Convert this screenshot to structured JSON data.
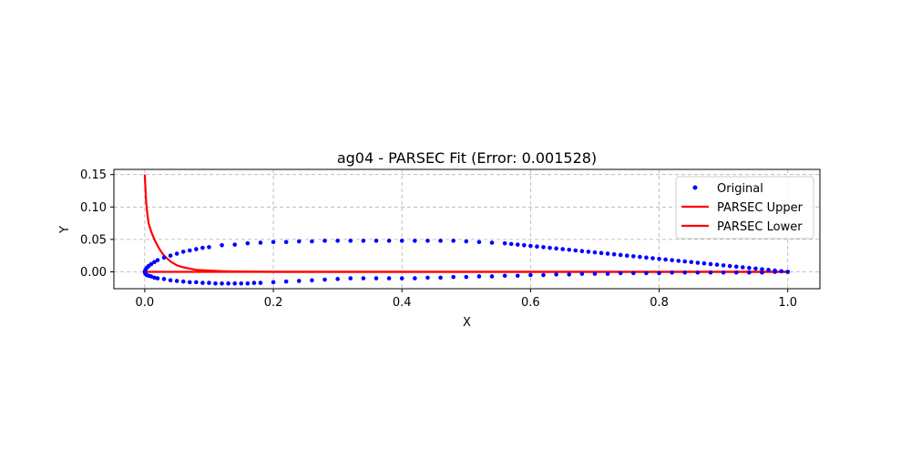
{
  "chart_data": {
    "type": "scatter",
    "title": "ag04 - PARSEC Fit (Error: 0.001528)",
    "xlabel": "X",
    "ylabel": "Y",
    "xlim": [
      -0.048,
      1.05
    ],
    "ylim": [
      -0.026,
      0.158
    ],
    "xticks": [
      0.0,
      0.2,
      0.4,
      0.6,
      0.8,
      1.0
    ],
    "xtick_labels": [
      "0.0",
      "0.2",
      "0.4",
      "0.6",
      "0.8",
      "1.0"
    ],
    "yticks": [
      0.0,
      0.05,
      0.1,
      0.15
    ],
    "ytick_labels": [
      "0.00",
      "0.05",
      "0.10",
      "0.15"
    ],
    "grid": true,
    "legend_position": "top-right",
    "series": [
      {
        "name": "Original",
        "kind": "scatter",
        "color": "#0000ff",
        "points": [
          [
            1.0,
            0.0
          ],
          [
            0.99,
            0.001
          ],
          [
            0.98,
            0.002
          ],
          [
            0.97,
            0.003
          ],
          [
            0.96,
            0.004
          ],
          [
            0.95,
            0.005
          ],
          [
            0.94,
            0.006
          ],
          [
            0.93,
            0.007
          ],
          [
            0.92,
            0.008
          ],
          [
            0.91,
            0.009
          ],
          [
            0.9,
            0.01
          ],
          [
            0.89,
            0.011
          ],
          [
            0.88,
            0.012
          ],
          [
            0.87,
            0.013
          ],
          [
            0.86,
            0.014
          ],
          [
            0.85,
            0.015
          ],
          [
            0.84,
            0.016
          ],
          [
            0.83,
            0.017
          ],
          [
            0.82,
            0.018
          ],
          [
            0.81,
            0.019
          ],
          [
            0.8,
            0.02
          ],
          [
            0.79,
            0.021
          ],
          [
            0.78,
            0.022
          ],
          [
            0.77,
            0.023
          ],
          [
            0.76,
            0.024
          ],
          [
            0.75,
            0.025
          ],
          [
            0.74,
            0.026
          ],
          [
            0.73,
            0.027
          ],
          [
            0.72,
            0.028
          ],
          [
            0.71,
            0.029
          ],
          [
            0.7,
            0.03
          ],
          [
            0.69,
            0.031
          ],
          [
            0.68,
            0.032
          ],
          [
            0.67,
            0.033
          ],
          [
            0.66,
            0.034
          ],
          [
            0.65,
            0.035
          ],
          [
            0.64,
            0.036
          ],
          [
            0.63,
            0.037
          ],
          [
            0.62,
            0.038
          ],
          [
            0.61,
            0.039
          ],
          [
            0.6,
            0.04
          ],
          [
            0.59,
            0.041
          ],
          [
            0.58,
            0.042
          ],
          [
            0.57,
            0.043
          ],
          [
            0.56,
            0.044
          ],
          [
            0.54,
            0.045
          ],
          [
            0.52,
            0.046
          ],
          [
            0.5,
            0.047
          ],
          [
            0.48,
            0.048
          ],
          [
            0.46,
            0.048
          ],
          [
            0.44,
            0.048
          ],
          [
            0.42,
            0.048
          ],
          [
            0.4,
            0.048
          ],
          [
            0.38,
            0.048
          ],
          [
            0.36,
            0.048
          ],
          [
            0.34,
            0.048
          ],
          [
            0.32,
            0.048
          ],
          [
            0.3,
            0.048
          ],
          [
            0.28,
            0.048
          ],
          [
            0.26,
            0.047
          ],
          [
            0.24,
            0.047
          ],
          [
            0.22,
            0.046
          ],
          [
            0.2,
            0.046
          ],
          [
            0.18,
            0.045
          ],
          [
            0.16,
            0.044
          ],
          [
            0.14,
            0.042
          ],
          [
            0.12,
            0.041
          ],
          [
            0.1,
            0.038
          ],
          [
            0.09,
            0.037
          ],
          [
            0.08,
            0.035
          ],
          [
            0.07,
            0.033
          ],
          [
            0.06,
            0.031
          ],
          [
            0.05,
            0.028
          ],
          [
            0.04,
            0.025
          ],
          [
            0.03,
            0.022
          ],
          [
            0.02,
            0.018
          ],
          [
            0.015,
            0.015
          ],
          [
            0.01,
            0.012
          ],
          [
            0.006,
            0.009
          ],
          [
            0.003,
            0.006
          ],
          [
            0.001,
            0.003
          ],
          [
            0.0,
            0.0
          ],
          [
            0.001,
            -0.003
          ],
          [
            0.003,
            -0.005
          ],
          [
            0.006,
            -0.006
          ],
          [
            0.01,
            -0.007
          ],
          [
            0.015,
            -0.009
          ],
          [
            0.02,
            -0.01
          ],
          [
            0.03,
            -0.011
          ],
          [
            0.04,
            -0.013
          ],
          [
            0.05,
            -0.014
          ],
          [
            0.06,
            -0.015
          ],
          [
            0.07,
            -0.016
          ],
          [
            0.08,
            -0.016
          ],
          [
            0.09,
            -0.017
          ],
          [
            0.1,
            -0.017
          ],
          [
            0.11,
            -0.018
          ],
          [
            0.12,
            -0.018
          ],
          [
            0.13,
            -0.018
          ],
          [
            0.14,
            -0.018
          ],
          [
            0.15,
            -0.018
          ],
          [
            0.16,
            -0.018
          ],
          [
            0.17,
            -0.017
          ],
          [
            0.18,
            -0.017
          ],
          [
            0.2,
            -0.016
          ],
          [
            0.22,
            -0.015
          ],
          [
            0.24,
            -0.014
          ],
          [
            0.26,
            -0.013
          ],
          [
            0.28,
            -0.012
          ],
          [
            0.3,
            -0.011
          ],
          [
            0.32,
            -0.01
          ],
          [
            0.34,
            -0.01
          ],
          [
            0.36,
            -0.01
          ],
          [
            0.38,
            -0.01
          ],
          [
            0.4,
            -0.01
          ],
          [
            0.42,
            -0.01
          ],
          [
            0.44,
            -0.009
          ],
          [
            0.46,
            -0.009
          ],
          [
            0.48,
            -0.008
          ],
          [
            0.5,
            -0.008
          ],
          [
            0.52,
            -0.007
          ],
          [
            0.54,
            -0.007
          ],
          [
            0.56,
            -0.006
          ],
          [
            0.58,
            -0.006
          ],
          [
            0.6,
            -0.005
          ],
          [
            0.62,
            -0.005
          ],
          [
            0.64,
            -0.004
          ],
          [
            0.66,
            -0.004
          ],
          [
            0.68,
            -0.003
          ],
          [
            0.7,
            -0.003
          ],
          [
            0.72,
            -0.003
          ],
          [
            0.74,
            -0.002
          ],
          [
            0.76,
            -0.002
          ],
          [
            0.78,
            -0.002
          ],
          [
            0.8,
            -0.002
          ],
          [
            0.82,
            -0.001
          ],
          [
            0.84,
            -0.001
          ],
          [
            0.86,
            -0.001
          ],
          [
            0.88,
            -0.001
          ],
          [
            0.9,
            -0.001
          ],
          [
            0.92,
            -0.001
          ],
          [
            0.94,
            -0.001
          ],
          [
            0.96,
            -0.001
          ],
          [
            0.98,
            0.0
          ],
          [
            1.0,
            0.0
          ]
        ]
      },
      {
        "name": "PARSEC Upper",
        "kind": "line",
        "color": "#ff0000",
        "points": [
          [
            0.0,
            0.15
          ],
          [
            0.002,
            0.11
          ],
          [
            0.004,
            0.09
          ],
          [
            0.006,
            0.075
          ],
          [
            0.01,
            0.062
          ],
          [
            0.015,
            0.05
          ],
          [
            0.02,
            0.04
          ],
          [
            0.025,
            0.032
          ],
          [
            0.03,
            0.025
          ],
          [
            0.04,
            0.016
          ],
          [
            0.05,
            0.01
          ],
          [
            0.06,
            0.007
          ],
          [
            0.07,
            0.005
          ],
          [
            0.08,
            0.003
          ],
          [
            0.1,
            0.002
          ],
          [
            0.12,
            0.001
          ],
          [
            0.15,
            0.0005
          ],
          [
            0.2,
            0.0
          ],
          [
            0.3,
            0.0
          ],
          [
            0.5,
            0.0
          ],
          [
            0.7,
            0.0
          ],
          [
            0.9,
            0.0
          ],
          [
            1.0,
            0.0
          ]
        ]
      },
      {
        "name": "PARSEC Lower",
        "kind": "line",
        "color": "#ff0000",
        "points": [
          [
            0.0,
            0.0
          ],
          [
            0.2,
            0.0
          ],
          [
            0.4,
            0.0
          ],
          [
            0.6,
            0.0
          ],
          [
            0.8,
            0.0
          ],
          [
            1.0,
            0.0
          ]
        ]
      }
    ]
  }
}
